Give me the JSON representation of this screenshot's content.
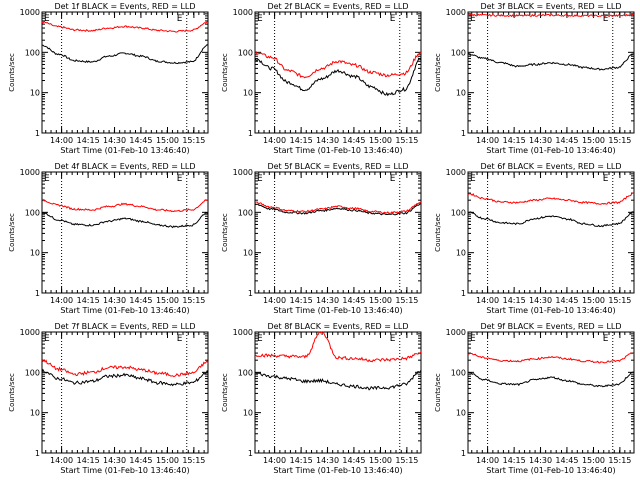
{
  "chart_data": [
    {
      "type": "line",
      "title": "Det 1f BLACK = Events, RED = LLD",
      "xlabel": "Start Time (01-Feb-10 13:46:40)",
      "ylabel": "Counts/sec",
      "yscale": "log",
      "ylim": [
        1,
        1000
      ],
      "x_ticks": [
        "14:00",
        "14:15",
        "14:30",
        "14:45",
        "15:00",
        "15:15"
      ],
      "y_ticks": [
        "1",
        "10",
        "100",
        "1000"
      ],
      "markers": [
        "E",
        "E"
      ],
      "series": [
        {
          "color": "#000000",
          "values": [
            150,
            90,
            62,
            58,
            80,
            95,
            80,
            60,
            55,
            58,
            150
          ]
        },
        {
          "color": "#ff0000",
          "values": [
            560,
            430,
            360,
            345,
            400,
            440,
            400,
            350,
            330,
            350,
            560
          ]
        }
      ]
    },
    {
      "type": "line",
      "title": "Det 2f BLACK = Events, RED = LLD",
      "xlabel": "Start Time (01-Feb-10 13:46:40)",
      "ylabel": "Counts/sec",
      "yscale": "log",
      "ylim": [
        1,
        1000
      ],
      "x_ticks": [
        "14:00",
        "14:15",
        "14:30",
        "14:45",
        "15:00",
        "15:15"
      ],
      "y_ticks": [
        "1",
        "10",
        "100",
        "1000"
      ],
      "markers": [
        "E",
        "E"
      ],
      "series": [
        {
          "color": "#000000",
          "values": [
            70,
            40,
            18,
            12,
            22,
            35,
            25,
            14,
            9,
            12,
            70
          ]
        },
        {
          "color": "#ff0000",
          "values": [
            100,
            75,
            35,
            25,
            40,
            60,
            48,
            32,
            27,
            30,
            100
          ]
        }
      ]
    },
    {
      "type": "line",
      "title": "Det 3f BLACK = Events, RED = LLD",
      "xlabel": "Start Time (01-Feb-10 13:46:40)",
      "ylabel": "Counts/sec",
      "yscale": "log",
      "ylim": [
        1,
        1000
      ],
      "x_ticks": [
        "14:00",
        "14:15",
        "14:30",
        "14:45",
        "15:00",
        "15:15"
      ],
      "y_ticks": [
        "1",
        "10",
        "100",
        "1000"
      ],
      "markers": [
        "E",
        "E"
      ],
      "series": [
        {
          "color": "#000000",
          "values": [
            90,
            70,
            55,
            45,
            50,
            55,
            50,
            42,
            38,
            42,
            90
          ]
        },
        {
          "color": "#ff0000",
          "values": [
            850,
            830,
            820,
            810,
            820,
            830,
            820,
            810,
            800,
            810,
            850
          ]
        }
      ]
    },
    {
      "type": "line",
      "title": "Det 4f BLACK = Events, RED = LLD",
      "xlabel": "Start Time (01-Feb-10 13:46:40)",
      "ylabel": "Counts/sec",
      "yscale": "log",
      "ylim": [
        1,
        1000
      ],
      "x_ticks": [
        "14:00",
        "14:15",
        "14:30",
        "14:45",
        "15:00",
        "15:15"
      ],
      "y_ticks": [
        "1",
        "10",
        "100",
        "1000"
      ],
      "markers": [
        "E",
        "E"
      ],
      "series": [
        {
          "color": "#000000",
          "values": [
            100,
            65,
            50,
            48,
            60,
            70,
            60,
            48,
            44,
            48,
            100
          ]
        },
        {
          "color": "#ff0000",
          "values": [
            200,
            150,
            120,
            115,
            140,
            160,
            140,
            115,
            108,
            115,
            200
          ]
        }
      ]
    },
    {
      "type": "line",
      "title": "Det 5f BLACK = Events, RED = LLD",
      "xlabel": "Start Time (01-Feb-10 13:46:40)",
      "ylabel": "Counts/sec",
      "yscale": "log",
      "ylim": [
        1,
        1000
      ],
      "x_ticks": [
        "14:00",
        "14:15",
        "14:30",
        "14:45",
        "15:00",
        "15:15"
      ],
      "y_ticks": [
        "1",
        "10",
        "100",
        "1000"
      ],
      "markers": [
        "E",
        "E"
      ],
      "series": [
        {
          "color": "#000000",
          "values": [
            160,
            120,
            100,
            95,
            110,
            125,
            112,
            95,
            88,
            95,
            160
          ]
        },
        {
          "color": "#ff0000",
          "values": [
            175,
            135,
            110,
            105,
            120,
            140,
            125,
            105,
            98,
            105,
            175
          ]
        }
      ]
    },
    {
      "type": "line",
      "title": "Det 6f BLACK = Events, RED = LLD",
      "xlabel": "Start Time (01-Feb-10 13:46:40)",
      "ylabel": "Counts/sec",
      "yscale": "log",
      "ylim": [
        1,
        1000
      ],
      "x_ticks": [
        "14:00",
        "14:15",
        "14:30",
        "14:45",
        "15:00",
        "15:15"
      ],
      "y_ticks": [
        "1",
        "10",
        "100",
        "1000"
      ],
      "markers": [
        "E",
        "E"
      ],
      "series": [
        {
          "color": "#000000",
          "values": [
            100,
            70,
            55,
            52,
            70,
            80,
            68,
            52,
            46,
            52,
            100
          ]
        },
        {
          "color": "#ff0000",
          "values": [
            290,
            220,
            180,
            175,
            200,
            220,
            200,
            175,
            165,
            175,
            290
          ]
        }
      ]
    },
    {
      "type": "line",
      "title": "Det 7f BLACK = Events, RED = LLD",
      "xlabel": "Start Time (01-Feb-10 13:46:40)",
      "ylabel": "Counts/sec",
      "yscale": "log",
      "ylim": [
        1,
        1000
      ],
      "x_ticks": [
        "14:00",
        "14:15",
        "14:30",
        "14:45",
        "15:00",
        "15:15"
      ],
      "y_ticks": [
        "1",
        "10",
        "100",
        "1000"
      ],
      "markers": [
        "E",
        "E"
      ],
      "series": [
        {
          "color": "#000000",
          "values": [
            110,
            70,
            55,
            60,
            80,
            85,
            70,
            55,
            50,
            55,
            100
          ]
        },
        {
          "color": "#ff0000",
          "values": [
            200,
            120,
            90,
            100,
            130,
            135,
            115,
            95,
            85,
            95,
            180
          ]
        }
      ]
    },
    {
      "type": "line",
      "title": "Det 8f BLACK = Events, RED = LLD",
      "xlabel": "Start Time (01-Feb-10 13:46:40)",
      "ylabel": "Counts/sec",
      "yscale": "log",
      "ylim": [
        1,
        1000
      ],
      "x_ticks": [
        "14:00",
        "14:15",
        "14:30",
        "14:45",
        "15:00",
        "15:15"
      ],
      "y_ticks": [
        "1",
        "10",
        "100",
        "1000"
      ],
      "markers": [
        "E",
        "E"
      ],
      "series": [
        {
          "color": "#000000",
          "values": [
            95,
            80,
            70,
            60,
            62,
            50,
            45,
            40,
            42,
            50,
            110
          ]
        },
        {
          "color": "#ff0000",
          "values": [
            270,
            260,
            250,
            240,
            1000,
            230,
            220,
            200,
            205,
            220,
            300
          ]
        }
      ]
    },
    {
      "type": "line",
      "title": "Det 9f BLACK = Events, RED = LLD",
      "xlabel": "Start Time (01-Feb-10 13:46:40)",
      "ylabel": "Counts/sec",
      "yscale": "log",
      "ylim": [
        1,
        1000
      ],
      "x_ticks": [
        "14:00",
        "14:15",
        "14:30",
        "14:45",
        "15:00",
        "15:15"
      ],
      "y_ticks": [
        "1",
        "10",
        "100",
        "1000"
      ],
      "markers": [
        "E",
        "E"
      ],
      "series": [
        {
          "color": "#000000",
          "values": [
            100,
            65,
            52,
            50,
            65,
            75,
            62,
            50,
            45,
            50,
            100
          ]
        },
        {
          "color": "#ff0000",
          "values": [
            300,
            230,
            195,
            190,
            215,
            240,
            215,
            190,
            180,
            190,
            300
          ]
        }
      ]
    }
  ]
}
